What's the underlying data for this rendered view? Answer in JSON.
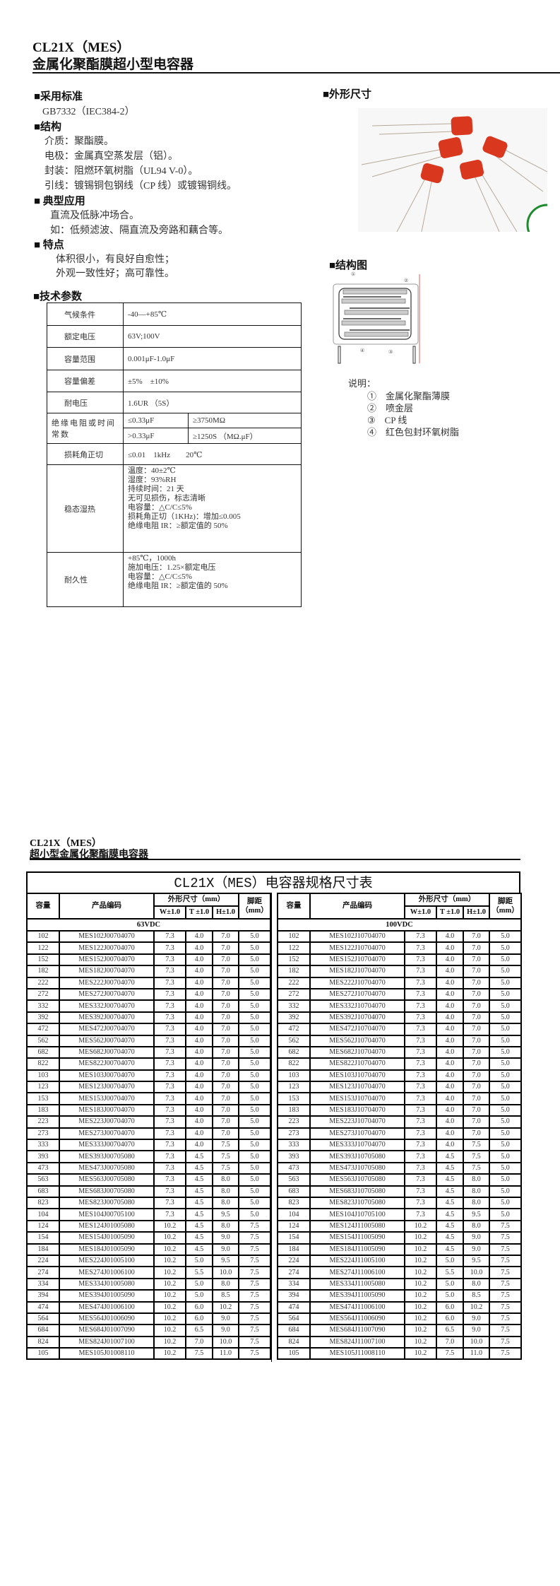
{
  "page1": {
    "title": "CL21X（MES）",
    "subtitle": "金属化聚酯膜超小型电容器",
    "sections": {
      "standard": {
        "heading": "■采用标准",
        "lines": [
          "GB7332（IEC384-2）"
        ]
      },
      "structure": {
        "heading": "■结构",
        "lines": [
          "介质：聚酯膜。",
          "电极：金属真空蒸发层（铝）。",
          "封装：阻燃环氧树脂（UL94 V-0）。",
          "引线：镀锡铜包钢线（CP 线）或镀锡铜线。"
        ]
      },
      "application": {
        "heading": "■ 典型应用",
        "lines": [
          "直流及低脉冲场合。",
          "如：低频滤波、隔直流及旁路和藕合等。"
        ]
      },
      "features": {
        "heading": "■ 特点",
        "lines": [
          "体积很小，有良好自愈性；",
          "外观一致性好；高可靠性。"
        ]
      },
      "outline": {
        "heading": "■外形尺寸"
      },
      "diagram": {
        "heading": "■结构图",
        "callouts": [
          "①",
          "②",
          "③",
          "④"
        ],
        "legend_title": "说明：",
        "legend": [
          {
            "num": "①",
            "text": "金属化聚酯薄膜"
          },
          {
            "num": "②",
            "text": "喷金层"
          },
          {
            "num": "③",
            "text": "CP 线"
          },
          {
            "num": "④",
            "text": "红色包封环氧树脂"
          }
        ]
      }
    },
    "params": {
      "heading": "■技术参数",
      "climate": {
        "label": "气候条件",
        "value": "-40—+85℃"
      },
      "rated_voltage": {
        "label": "额定电压",
        "value": "63V;100V"
      },
      "cap_range": {
        "label": "容量范围",
        "value": "0.001μF-1.0μF"
      },
      "tolerance": {
        "label": "容量偏差",
        "value": "±5%　±10%"
      },
      "withstand": {
        "label": "耐电压",
        "value": "1.6UR （5S）"
      },
      "insulation": {
        "label": "绝缘电阻或时间常数",
        "r1c1": "≤0.33μF",
        "r1c2": "≥3750MΩ",
        "r2c1": ">0.33μF",
        "r2c2": "≥1250S （MΩ.μF）"
      },
      "dissipation": {
        "label": "损耗角正切",
        "value": "≤0.01　1kHz　　20℃"
      },
      "damp_heat": {
        "label": "稳态湿热",
        "lines": [
          "温度：40±2℃",
          "湿度：93%RH",
          "持续时间：21 天",
          "无可见损伤，标志清晰",
          "电容量：△C/C≤5%",
          "损耗角正切（1KHz)：增加≤0.005",
          "绝缘电阻 IR：≥额定值的 50%"
        ]
      },
      "endurance": {
        "label": "耐久性",
        "lines": [
          "+85℃，1000h",
          "施加电压：1.25×额定电压",
          "电容量：△C/C≤5%",
          "绝缘电阻 IR：≥额定值的 50%"
        ]
      }
    }
  },
  "page2": {
    "title": "CL21X（MES）",
    "subtitle": "超小型金属化聚酯膜电容器",
    "table_title": "CL21X（MES）电容器规格尺寸表",
    "headers": {
      "cap": "容量",
      "code": "产品编码",
      "dims": "外形尺寸（mm）",
      "pitch": "脚距（mm）",
      "w": "W±1.0",
      "t": "T ±1.0",
      "h": "H±1.0"
    },
    "tables": [
      {
        "voltage": "63VDC",
        "rows": [
          [
            "102",
            "MES102J00704070",
            "7.3",
            "4.0",
            "7.0",
            "5.0"
          ],
          [
            "122",
            "MES122J00704070",
            "7.3",
            "4.0",
            "7.0",
            "5.0"
          ],
          [
            "152",
            "MES152J00704070",
            "7.3",
            "4.0",
            "7.0",
            "5.0"
          ],
          [
            "182",
            "MES182J00704070",
            "7.3",
            "4.0",
            "7.0",
            "5.0"
          ],
          [
            "222",
            "MES222J00704070",
            "7.3",
            "4.0",
            "7.0",
            "5.0"
          ],
          [
            "272",
            "MES272J00704070",
            "7.3",
            "4.0",
            "7.0",
            "5.0"
          ],
          [
            "332",
            "MES332J00704070",
            "7.3",
            "4.0",
            "7.0",
            "5.0"
          ],
          [
            "392",
            "MES392J00704070",
            "7.3",
            "4.0",
            "7.0",
            "5.0"
          ],
          [
            "472",
            "MES472J00704070",
            "7.3",
            "4.0",
            "7.0",
            "5.0"
          ],
          [
            "562",
            "MES562J00704070",
            "7.3",
            "4.0",
            "7.0",
            "5.0"
          ],
          [
            "682",
            "MES682J00704070",
            "7.3",
            "4.0",
            "7.0",
            "5.0"
          ],
          [
            "822",
            "MES822J00704070",
            "7.3",
            "4.0",
            "7.0",
            "5.0"
          ],
          [
            "103",
            "MES103J00704070",
            "7.3",
            "4.0",
            "7.0",
            "5.0"
          ],
          [
            "123",
            "MES123J00704070",
            "7.3",
            "4.0",
            "7.0",
            "5.0"
          ],
          [
            "153",
            "MES153J00704070",
            "7.3",
            "4.0",
            "7.0",
            "5.0"
          ],
          [
            "183",
            "MES183J00704070",
            "7.3",
            "4.0",
            "7.0",
            "5.0"
          ],
          [
            "223",
            "MES223J00704070",
            "7.3",
            "4.0",
            "7.0",
            "5.0"
          ],
          [
            "273",
            "MES273J00704070",
            "7.3",
            "4.0",
            "7.0",
            "5.0"
          ],
          [
            "333",
            "MES333J00704070",
            "7.3",
            "4.0",
            "7.5",
            "5.0"
          ],
          [
            "393",
            "MES393J00705080",
            "7.3",
            "4.5",
            "7.5",
            "5.0"
          ],
          [
            "473",
            "MES473J00705080",
            "7.3",
            "4.5",
            "7.5",
            "5.0"
          ],
          [
            "563",
            "MES563J00705080",
            "7.3",
            "4.5",
            "8.0",
            "5.0"
          ],
          [
            "683",
            "MES683J00705080",
            "7.3",
            "4.5",
            "8.0",
            "5.0"
          ],
          [
            "823",
            "MES823J00705080",
            "7.3",
            "4.5",
            "8.0",
            "5.0"
          ],
          [
            "104",
            "MES104J00705100",
            "7.3",
            "4.5",
            "9.5",
            "5.0"
          ],
          [
            "124",
            "MES124J01005080",
            "10.2",
            "4.5",
            "8.0",
            "7.5"
          ],
          [
            "154",
            "MES154J01005090",
            "10.2",
            "4.5",
            "9.0",
            "7.5"
          ],
          [
            "184",
            "MES184J01005090",
            "10.2",
            "4.5",
            "9.0",
            "7.5"
          ],
          [
            "224",
            "MES224J01005100",
            "10.2",
            "5.0",
            "9.5",
            "7.5"
          ],
          [
            "274",
            "MES274J01006100",
            "10.2",
            "5.5",
            "10.0",
            "7.5"
          ],
          [
            "334",
            "MES334J01005080",
            "10.2",
            "5.0",
            "8.0",
            "7.5"
          ],
          [
            "394",
            "MES394J01005090",
            "10.2",
            "5.0",
            "8.5",
            "7.5"
          ],
          [
            "474",
            "MES474J01006100",
            "10.2",
            "6.0",
            "10.2",
            "7.5"
          ],
          [
            "564",
            "MES564J01006090",
            "10.2",
            "6.0",
            "9.0",
            "7.5"
          ],
          [
            "684",
            "MES684J01007090",
            "10.2",
            "6.5",
            "9.0",
            "7.5"
          ],
          [
            "824",
            "MES824J01007100",
            "10.2",
            "7.0",
            "10.0",
            "7.5"
          ],
          [
            "105",
            "MES105J01008110",
            "10.2",
            "7.5",
            "11.0",
            "7.5"
          ]
        ]
      },
      {
        "voltage": "100VDC",
        "rows": [
          [
            "102",
            "MES102J10704070",
            "7.3",
            "4.0",
            "7.0",
            "5.0"
          ],
          [
            "122",
            "MES122J10704070",
            "7.3",
            "4.0",
            "7.0",
            "5.0"
          ],
          [
            "152",
            "MES152J10704070",
            "7.3",
            "4.0",
            "7.0",
            "5.0"
          ],
          [
            "182",
            "MES182J10704070",
            "7.3",
            "4.0",
            "7.0",
            "5.0"
          ],
          [
            "222",
            "MES222J10704070",
            "7.3",
            "4.0",
            "7.0",
            "5.0"
          ],
          [
            "272",
            "MES272J10704070",
            "7.3",
            "4.0",
            "7.0",
            "5.0"
          ],
          [
            "332",
            "MES332J10704070",
            "7.3",
            "4.0",
            "7.0",
            "5.0"
          ],
          [
            "392",
            "MES392J10704070",
            "7.3",
            "4.0",
            "7.0",
            "5.0"
          ],
          [
            "472",
            "MES472J10704070",
            "7.3",
            "4.0",
            "7.0",
            "5.0"
          ],
          [
            "562",
            "MES562J10704070",
            "7.3",
            "4.0",
            "7.0",
            "5.0"
          ],
          [
            "682",
            "MES682J10704070",
            "7.3",
            "4.0",
            "7.0",
            "5.0"
          ],
          [
            "822",
            "MES822J10704070",
            "7.3",
            "4.0",
            "7.0",
            "5.0"
          ],
          [
            "103",
            "MES103J10704070",
            "7.3",
            "4.0",
            "7.0",
            "5.0"
          ],
          [
            "123",
            "MES123J10704070",
            "7.3",
            "4.0",
            "7.0",
            "5.0"
          ],
          [
            "153",
            "MES153J10704070",
            "7.3",
            "4.0",
            "7.0",
            "5.0"
          ],
          [
            "183",
            "MES183J10704070",
            "7.3",
            "4.0",
            "7.0",
            "5.0"
          ],
          [
            "223",
            "MES223J10704070",
            "7.3",
            "4.0",
            "7.0",
            "5.0"
          ],
          [
            "273",
            "MES273J10704070",
            "7.3",
            "4.0",
            "7.0",
            "5.0"
          ],
          [
            "333",
            "MES333J10704070",
            "7.3",
            "4.0",
            "7.5",
            "5.0"
          ],
          [
            "393",
            "MES393J10705080",
            "7.3",
            "4.5",
            "7.5",
            "5.0"
          ],
          [
            "473",
            "MES473J10705080",
            "7.3",
            "4.5",
            "7.5",
            "5.0"
          ],
          [
            "563",
            "MES563J10705080",
            "7.3",
            "4.5",
            "8.0",
            "5.0"
          ],
          [
            "683",
            "MES683J10705080",
            "7.3",
            "4.5",
            "8.0",
            "5.0"
          ],
          [
            "823",
            "MES823J10705080",
            "7.3",
            "4.5",
            "8.0",
            "5.0"
          ],
          [
            "104",
            "MES104J10705100",
            "7.3",
            "4.5",
            "9.5",
            "5.0"
          ],
          [
            "124",
            "MES124J11005080",
            "10.2",
            "4.5",
            "8.0",
            "7.5"
          ],
          [
            "154",
            "MES154J11005090",
            "10.2",
            "4.5",
            "9.0",
            "7.5"
          ],
          [
            "184",
            "MES184J11005090",
            "10.2",
            "4.5",
            "9.0",
            "7.5"
          ],
          [
            "224",
            "MES224J11005100",
            "10.2",
            "5.0",
            "9.5",
            "7.5"
          ],
          [
            "274",
            "MES274J11006100",
            "10.2",
            "5.5",
            "10.0",
            "7.5"
          ],
          [
            "334",
            "MES334J11005080",
            "10.2",
            "5.0",
            "8.0",
            "7.5"
          ],
          [
            "394",
            "MES394J11005090",
            "10.2",
            "5.0",
            "8.5",
            "7.5"
          ],
          [
            "474",
            "MES474J11006100",
            "10.2",
            "6.0",
            "10.2",
            "7.5"
          ],
          [
            "564",
            "MES564J11006090",
            "10.2",
            "6.0",
            "9.0",
            "7.5"
          ],
          [
            "684",
            "MES684J11007090",
            "10.2",
            "6.5",
            "9.0",
            "7.5"
          ],
          [
            "824",
            "MES824J11007100",
            "10.2",
            "7.0",
            "10.0",
            "7.5"
          ],
          [
            "105",
            "MES105J11008110",
            "10.2",
            "7.5",
            "11.0",
            "7.5"
          ]
        ]
      }
    ]
  },
  "colors": {
    "capacitor_body": "#d9381e",
    "text": "#111111",
    "rule": "#111111"
  }
}
